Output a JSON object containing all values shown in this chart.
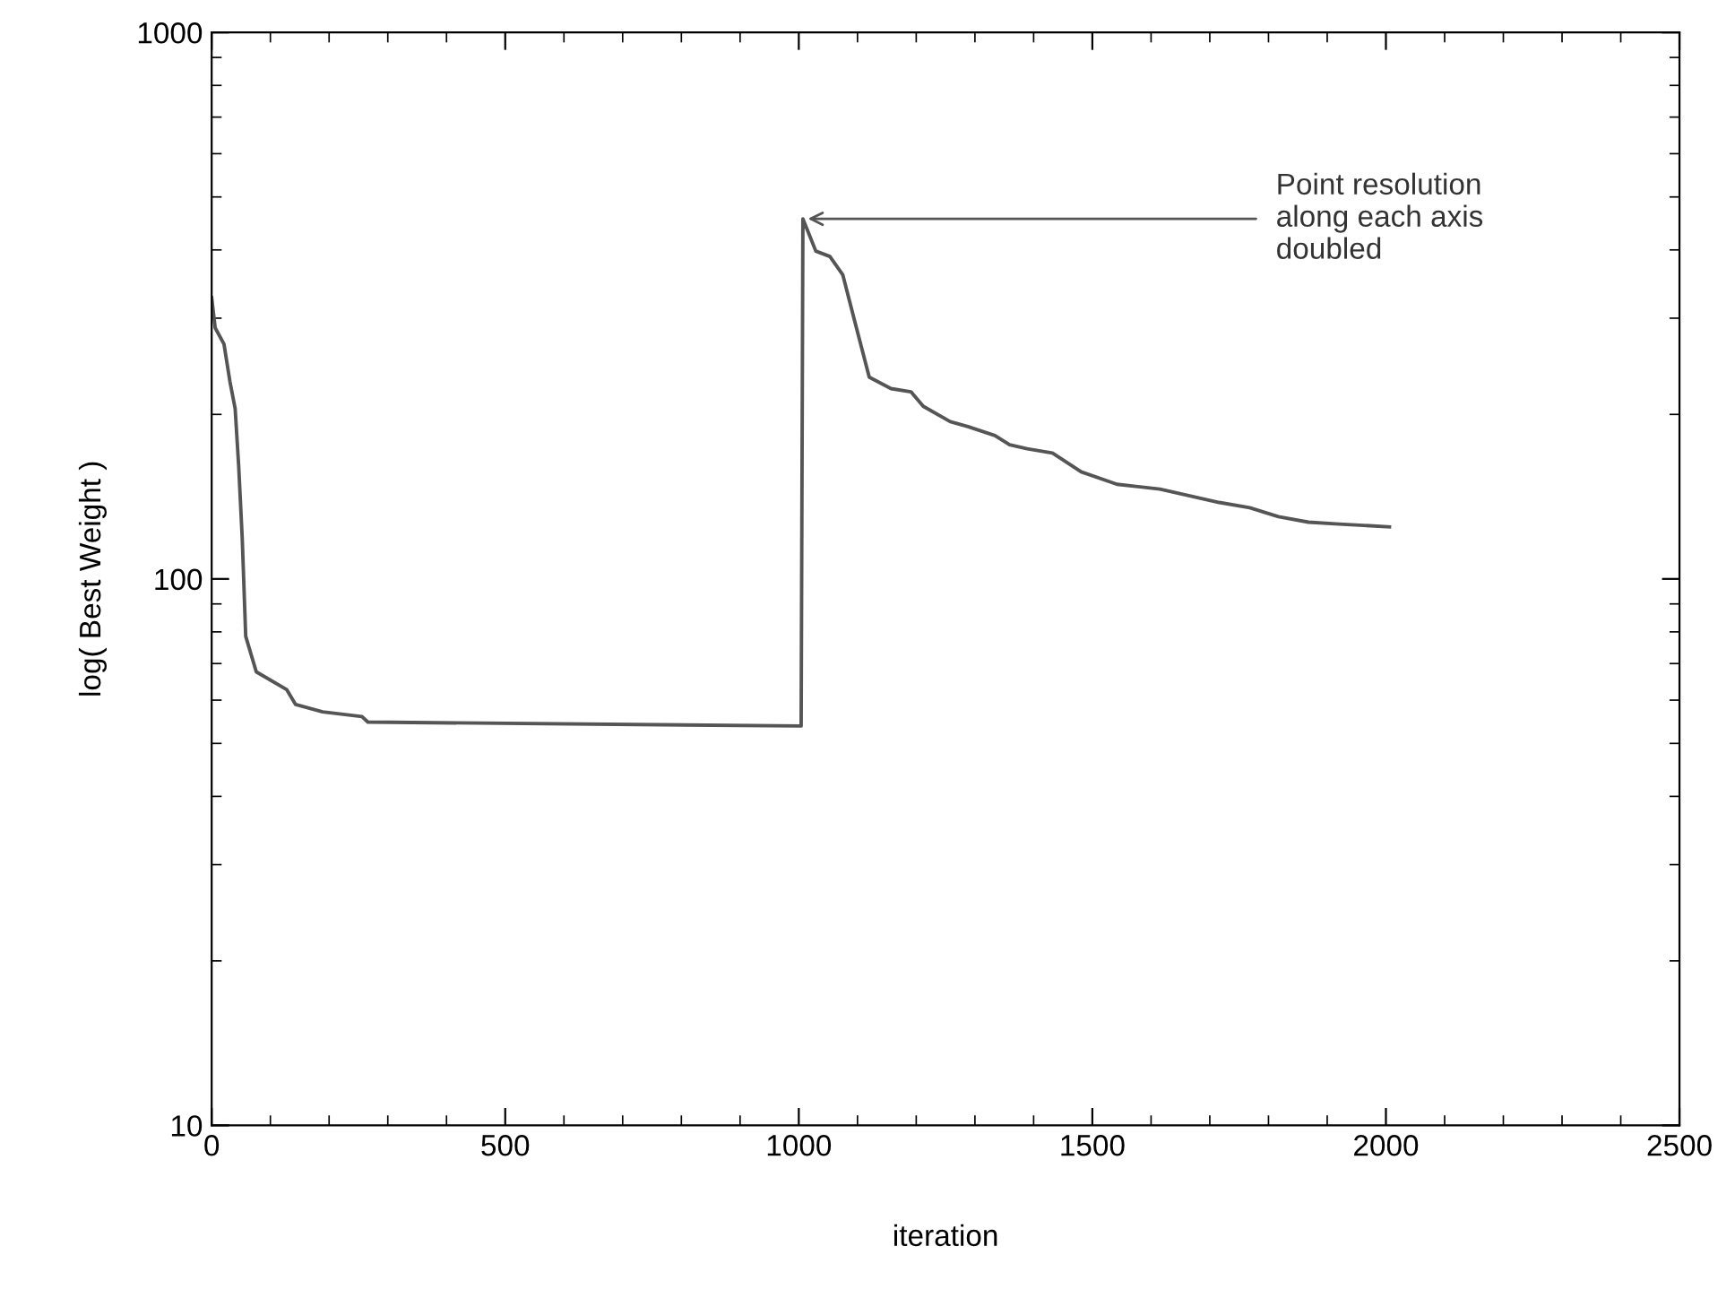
{
  "chart_data": {
    "type": "line",
    "xlabel": "iteration",
    "ylabel": "log( Best Weight )",
    "log": "y",
    "xlim": [
      0,
      2500
    ],
    "ylim": [
      10,
      1000
    ],
    "xticks": [
      0,
      500,
      1000,
      1500,
      2000,
      2500
    ],
    "yticks": [
      10,
      100,
      1000
    ],
    "grid": false,
    "marker": "none",
    "line_style": "solid",
    "annotations": [
      {
        "text": "Point resolution\nalong each axis\ndoubled",
        "x": 1007,
        "y": 456
      }
    ],
    "series": [
      {
        "color": "#555555",
        "x": [
          0,
          6,
          21,
          31,
          40,
          46,
          52,
          58,
          76,
          128,
          143,
          189,
          256,
          266,
          1004,
          1007,
          1029,
          1053,
          1075,
          1096,
          1120,
          1157,
          1191,
          1212,
          1258,
          1288,
          1334,
          1359,
          1389,
          1432,
          1481,
          1542,
          1615,
          1664,
          1716,
          1768,
          1817,
          1868,
          1920,
          2006
        ],
        "values": [
          327,
          288,
          269,
          230,
          205,
          161,
          119,
          78.5,
          67.6,
          62.7,
          58.9,
          57.1,
          56.0,
          54.7,
          53.8,
          456,
          398,
          389,
          360,
          294,
          234,
          223,
          220,
          207,
          194,
          190,
          183,
          176,
          173,
          170,
          157,
          149,
          146,
          142,
          138,
          135,
          130,
          127,
          126,
          124.5
        ]
      }
    ]
  }
}
